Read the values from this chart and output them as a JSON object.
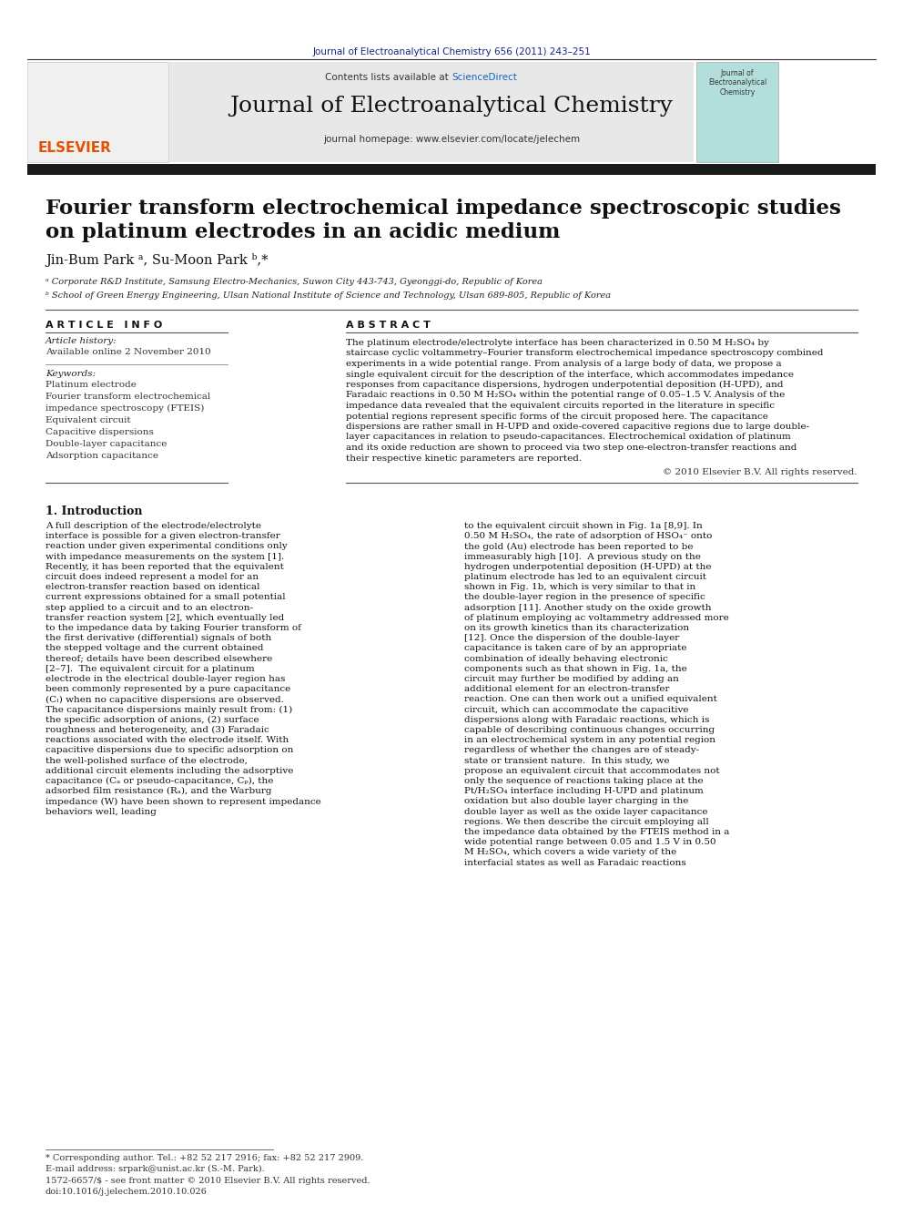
{
  "page_bg": "#ffffff",
  "header_citation": "Journal of Electroanalytical Chemistry 656 (2011) 243–251",
  "header_citation_color": "#1a237e",
  "journal_name": "Journal of Electroanalytical Chemistry",
  "journal_homepage": "journal homepage: www.elsevier.com/locate/jelechem",
  "contents_text": "Contents lists available at ScienceDirect",
  "sciencedirect_color": "#1565c0",
  "header_bg": "#e8e8e8",
  "header_bar_color": "#1a1a1a",
  "article_title_line1": "Fourier transform electrochemical impedance spectroscopic studies",
  "article_title_line2": "on platinum electrodes in an acidic medium",
  "authors": "Jin-Bum Park ᵃ, Su-Moon Park ᵇ,*",
  "affil_a": "ᵃ Corporate R&D Institute, Samsung Electro-Mechanics, Suwon City 443-743, Gyeonggi-do, Republic of Korea",
  "affil_b": "ᵇ School of Green Energy Engineering, Ulsan National Institute of Science and Technology, Ulsan 689-805, Republic of Korea",
  "section_article_info": "A R T I C L E   I N F O",
  "section_abstract": "A B S T R A C T",
  "article_history_label": "Article history:",
  "available_online": "Available online 2 November 2010",
  "keywords_label": "Keywords:",
  "keywords": [
    "Platinum electrode",
    "Fourier transform electrochemical",
    "impedance spectroscopy (FTEIS)",
    "Equivalent circuit",
    "Capacitive dispersions",
    "Double-layer capacitance",
    "Adsorption capacitance"
  ],
  "abstract_text": "The platinum electrode/electrolyte interface has been characterized in 0.50 M H₂SO₄ by staircase cyclic voltammetry–Fourier transform electrochemical impedance spectroscopy combined experiments in a wide potential range. From analysis of a large body of data, we propose a single equivalent circuit for the description of the interface, which accommodates impedance responses from capacitance dispersions, hydrogen underpotential deposition (H-UPD), and Faradaic reactions in 0.50 M H₂SO₄ within the potential range of 0.05–1.5 V. Analysis of the impedance data revealed that the equivalent circuits reported in the literature in specific potential regions represent specific forms of the circuit proposed here. The capacitance dispersions are rather small in H-UPD and oxide-covered capacitive regions due to large double-layer capacitances in relation to pseudo-capacitances. Electrochemical oxidation of platinum and its oxide reduction are shown to proceed via two step one-electron-transfer reactions and their respective kinetic parameters are reported.",
  "copyright_text": "© 2010 Elsevier B.V. All rights reserved.",
  "section1_title": "1. Introduction",
  "intro_col1_text": "A full description of the electrode/electrolyte interface is possible for a given electron-transfer reaction under given experimental conditions only with impedance measurements on the system [1]. Recently, it has been reported that the equivalent circuit does indeed represent a model for an electron-transfer reaction based on identical current expressions obtained for a small potential step applied to a circuit and to an electron-transfer reaction system [2], which eventually led to the impedance data by taking Fourier transform of the first derivative (differential) signals of both the stepped voltage and the current obtained thereof; details have been described elsewhere [2–7].\n\n    The equivalent circuit for a platinum electrode in the electrical double-layer region has been commonly represented by a pure capacitance (C⁤ₗ) when no capacitive dispersions are observed. The capacitance dispersions mainly result from: (1) the specific adsorption of anions, (2) surface roughness and heterogeneity, and (3) Faradaic reactions associated with the electrode itself. With capacitive dispersions due to specific adsorption on the well-polished surface of the electrode, additional circuit elements including the adsorptive capacitance (Cₐ⁤ or pseudo-capacitance, Cₚ), the adsorbed film resistance (Rₐ⁤), and the Warburg impedance (W) have been shown to represent impedance behaviors well, leading",
  "intro_col2_text": "to the equivalent circuit shown in Fig. 1a [8,9]. In 0.50 M H₂SO₄, the rate of adsorption of HSO₄⁻ onto the gold (Au) electrode has been reported to be immeasurably high [10].\n\n    A previous study on the hydrogen underpotential deposition (H-UPD) at the platinum electrode has led to an equivalent circuit shown in Fig. 1b, which is very similar to that in the double-layer region in the presence of specific adsorption [11]. Another study on the oxide growth of platinum employing ac voltammetry addressed more on its growth kinetics than its characterization [12]. Once the dispersion of the double-layer capacitance is taken care of by an appropriate combination of ideally behaving electronic components such as that shown in Fig. 1a, the circuit may further be modified by adding an additional element for an electron-transfer reaction. One can then work out a unified equivalent circuit, which can accommodate the capacitive dispersions along with Faradaic reactions, which is capable of describing continuous changes occurring in an electrochemical system in any potential region regardless of whether the changes are of steady-state or transient nature.\n\n    In this study, we propose an equivalent circuit that accommodates not only the sequence of reactions taking place at the Pt/H₂SO₄ interface including H-UPD and platinum oxidation but also double layer charging in the double layer as well as the oxide layer capacitance regions. We then describe the circuit employing all the impedance data obtained by the FTEIS method in a wide potential range between 0.05 and 1.5 V in 0.50 M H₂SO₄, which covers a wide variety of the interfacial states as well as Faradaic reactions",
  "footnote_star": "* Corresponding author. Tel.: +82 52 217 2916; fax: +82 52 217 2909.",
  "footnote_email": "E-mail address: srpark@unist.ac.kr (S.-M. Park).",
  "issn_text": "1572-6657/$ - see front matter © 2010 Elsevier B.V. All rights reserved.",
  "doi_text": "doi:10.1016/j.jelechem.2010.10.026"
}
